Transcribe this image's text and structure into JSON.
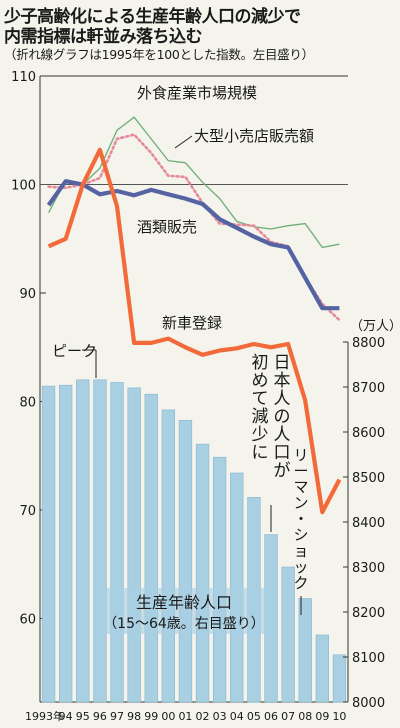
{
  "title_lines": [
    "少子高齢化による生産年齢人口の減少で",
    "内需指標は軒並み落ち込む"
  ],
  "subtitle": "（折れ線グラフは1995年を100とした指数。左目盛り）",
  "chart_data": {
    "type": "bar+line",
    "x": [
      "1993年",
      "94",
      "95",
      "96",
      "97",
      "98",
      "99",
      "00",
      "01",
      "02",
      "03",
      "04",
      "05",
      "06",
      "07",
      "08",
      "09",
      "10"
    ],
    "left_axis": {
      "ticks": [
        "110",
        "100",
        "90",
        "80",
        "70",
        "60"
      ],
      "ylim": [
        50,
        110
      ],
      "reference_line": 100
    },
    "right_axis": {
      "unit": "（万人）",
      "ticks": [
        "8800",
        "8700",
        "8600",
        "8500",
        "8400",
        "8300",
        "8200",
        "8100",
        "8000"
      ],
      "ylim": [
        8000,
        8800
      ]
    },
    "bars": {
      "name": "生産年齢人口",
      "label_lines": [
        "生産年齢人口",
        "（15〜64歳。右目盛り）"
      ],
      "values": [
        8702,
        8704,
        8716,
        8716,
        8710,
        8698,
        8684,
        8649,
        8626,
        8573,
        8544,
        8509,
        8455,
        8372,
        8300,
        8230,
        8149,
        8105
      ]
    },
    "series": [
      {
        "name": "外食産業市場規模",
        "style": "thin-green",
        "values": [
          97.4,
          100.4,
          100.0,
          101.5,
          105.0,
          106.2,
          104.2,
          102.2,
          102.0,
          100.2,
          98.7,
          96.6,
          96.1,
          95.9,
          96.2,
          96.4,
          94.2,
          94.5
        ]
      },
      {
        "name": "大型小売店販売額",
        "style": "dotted-pink",
        "values": [
          99.8,
          99.7,
          100.0,
          100.6,
          104.2,
          104.6,
          102.9,
          100.8,
          100.7,
          98.3,
          96.4,
          96.3,
          96.2,
          94.7,
          94.3,
          91.4,
          89.0,
          87.5
        ]
      },
      {
        "name": "酒類販売",
        "style": "thick-blue",
        "values": [
          98.1,
          100.3,
          100.0,
          99.1,
          99.4,
          99.0,
          99.5,
          99.1,
          98.7,
          98.2,
          96.8,
          96.0,
          95.2,
          94.5,
          94.2,
          91.4,
          88.6,
          88.6
        ]
      },
      {
        "name": "新車登録",
        "style": "thick-orange",
        "values": [
          94.3,
          95.0,
          100.0,
          103.2,
          98.0,
          85.4,
          85.4,
          85.8,
          85.0,
          84.3,
          84.7,
          84.9,
          85.3,
          85.0,
          85.3,
          80.1,
          69.8,
          72.8
        ]
      }
    ],
    "annotations": [
      {
        "text": "ピーク"
      },
      {
        "text_lines": [
          "日本人の人口が",
          "初めて減少に"
        ]
      },
      {
        "text": "リーマン・ショック"
      }
    ]
  },
  "colors": {
    "background": "#f4f3ec",
    "bars": "#a9cfe2",
    "bar_edge": "#88b6cf",
    "shurui": "#5663a3",
    "shinsha": "#f26a3a",
    "gaishoku": "#6fae76",
    "ogata": "#e58a9a",
    "grid": "#555555"
  }
}
